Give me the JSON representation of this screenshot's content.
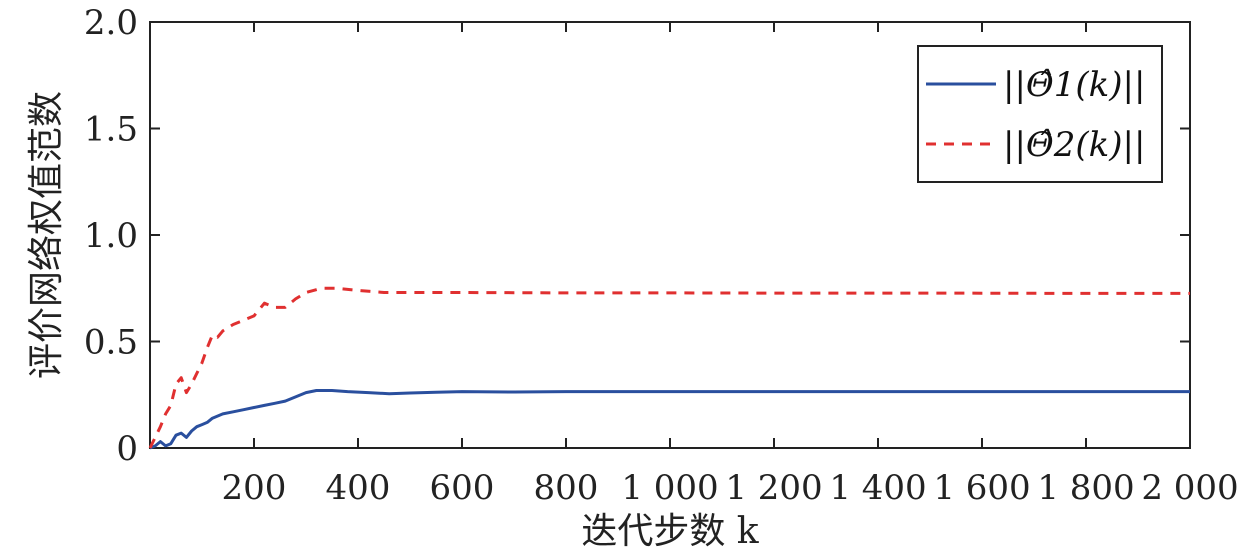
{
  "chart_data": {
    "type": "line",
    "xlabel": "迭代步数 k",
    "ylabel": "评价网络权值范数",
    "xlim": [
      0,
      2000
    ],
    "ylim": [
      0,
      2.0
    ],
    "x_ticks": [
      {
        "value": 200,
        "label": "200"
      },
      {
        "value": 400,
        "label": "400"
      },
      {
        "value": 600,
        "label": "600"
      },
      {
        "value": 800,
        "label": "800"
      },
      {
        "value": 1000,
        "label": "1 000"
      },
      {
        "value": 1200,
        "label": "1 200"
      },
      {
        "value": 1400,
        "label": "1 400"
      },
      {
        "value": 1600,
        "label": "1 600"
      },
      {
        "value": 1800,
        "label": "1 800"
      },
      {
        "value": 2000,
        "label": "2 000"
      }
    ],
    "y_ticks": [
      {
        "value": 0,
        "label": "0"
      },
      {
        "value": 0.5,
        "label": "0.5"
      },
      {
        "value": 1.0,
        "label": "1.0"
      },
      {
        "value": 1.5,
        "label": "1.5"
      },
      {
        "value": 2.0,
        "label": "2.0"
      }
    ],
    "grid": false,
    "legend_position": "top-right",
    "series": [
      {
        "name": "||Θ̂1(k)||",
        "color": "#2a4f9e",
        "dash": "solid",
        "points": [
          [
            0,
            0
          ],
          [
            10,
            0.01
          ],
          [
            20,
            0.03
          ],
          [
            30,
            0.01
          ],
          [
            40,
            0.02
          ],
          [
            50,
            0.06
          ],
          [
            60,
            0.07
          ],
          [
            70,
            0.05
          ],
          [
            80,
            0.08
          ],
          [
            90,
            0.1
          ],
          [
            100,
            0.11
          ],
          [
            110,
            0.12
          ],
          [
            120,
            0.14
          ],
          [
            140,
            0.16
          ],
          [
            160,
            0.17
          ],
          [
            180,
            0.18
          ],
          [
            200,
            0.19
          ],
          [
            220,
            0.2
          ],
          [
            240,
            0.21
          ],
          [
            260,
            0.22
          ],
          [
            280,
            0.24
          ],
          [
            300,
            0.26
          ],
          [
            320,
            0.27
          ],
          [
            350,
            0.27
          ],
          [
            380,
            0.265
          ],
          [
            420,
            0.26
          ],
          [
            460,
            0.255
          ],
          [
            500,
            0.258
          ],
          [
            550,
            0.262
          ],
          [
            600,
            0.265
          ],
          [
            700,
            0.263
          ],
          [
            800,
            0.265
          ],
          [
            900,
            0.265
          ],
          [
            1000,
            0.265
          ],
          [
            1200,
            0.265
          ],
          [
            1500,
            0.265
          ],
          [
            1800,
            0.265
          ],
          [
            2000,
            0.265
          ]
        ]
      },
      {
        "name": "||Θ̂2(k)||",
        "color": "#e03030",
        "dash": "dashed",
        "points": [
          [
            0,
            0
          ],
          [
            10,
            0.05
          ],
          [
            20,
            0.1
          ],
          [
            30,
            0.16
          ],
          [
            40,
            0.2
          ],
          [
            50,
            0.3
          ],
          [
            60,
            0.33
          ],
          [
            70,
            0.26
          ],
          [
            80,
            0.3
          ],
          [
            90,
            0.35
          ],
          [
            100,
            0.4
          ],
          [
            110,
            0.47
          ],
          [
            120,
            0.53
          ],
          [
            130,
            0.52
          ],
          [
            140,
            0.55
          ],
          [
            160,
            0.58
          ],
          [
            180,
            0.6
          ],
          [
            200,
            0.62
          ],
          [
            220,
            0.68
          ],
          [
            240,
            0.66
          ],
          [
            260,
            0.66
          ],
          [
            280,
            0.7
          ],
          [
            300,
            0.73
          ],
          [
            330,
            0.75
          ],
          [
            360,
            0.75
          ],
          [
            400,
            0.74
          ],
          [
            450,
            0.73
          ],
          [
            500,
            0.73
          ],
          [
            600,
            0.73
          ],
          [
            800,
            0.728
          ],
          [
            1000,
            0.728
          ],
          [
            1200,
            0.727
          ],
          [
            1500,
            0.727
          ],
          [
            1800,
            0.726
          ],
          [
            2000,
            0.726
          ]
        ]
      }
    ]
  }
}
